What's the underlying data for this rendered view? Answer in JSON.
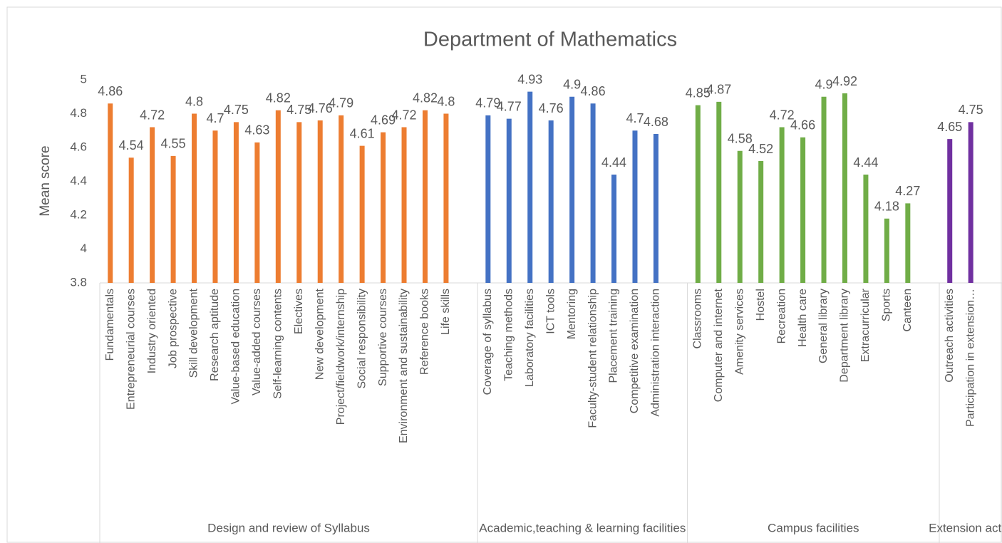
{
  "chart_data": {
    "type": "bar",
    "title": "Department of Mathematics",
    "y_label": "Mean score",
    "ylim": [
      3.8,
      5
    ],
    "yticks": [
      3.8,
      4,
      4.2,
      4.4,
      4.6,
      4.8,
      5
    ],
    "grid": false,
    "groups": [
      {
        "label": "Design and review of Syllabus",
        "color": "#ed7d31",
        "categories": [
          "Fundamentals",
          "Entrepreneurial courses",
          "Industry oriented",
          "Job prospective",
          "Skill development",
          "Research aptitude",
          "Value-based education",
          "Value-added courses",
          "Self-learning contents",
          "Electives",
          "New development",
          "Project/fieldwork/internship",
          "Social responsibility",
          "Supportive courses",
          "Environment and sustainability",
          "Reference books",
          "Life skills"
        ],
        "values": [
          4.86,
          4.54,
          4.72,
          4.55,
          4.8,
          4.7,
          4.75,
          4.63,
          4.82,
          4.75,
          4.76,
          4.79,
          4.61,
          4.69,
          4.72,
          4.82,
          4.8
        ]
      },
      {
        "label": "Academic,teaching & learning facilities",
        "color": "#4472c4",
        "categories": [
          "Coverage of syllabus",
          "Teaching methods",
          "Laboratory facilities",
          "ICT tools",
          "Mentoring",
          "Faculty-student relationship",
          "Placement training",
          "Competitive examination",
          "Administration interaction"
        ],
        "values": [
          4.79,
          4.77,
          4.93,
          4.76,
          4.9,
          4.86,
          4.44,
          4.7,
          4.68
        ]
      },
      {
        "label": "Campus facilities",
        "color": "#70ad47",
        "categories": [
          "Classrooms",
          "Computer and internet",
          "Amenity services",
          "Hostel",
          "Recreation",
          "Health care",
          "General library",
          "Department library",
          "Extracurricular",
          "Sports",
          "Canteen"
        ],
        "values": [
          4.85,
          4.87,
          4.58,
          4.52,
          4.72,
          4.66,
          4.9,
          4.92,
          4.44,
          4.18,
          4.27
        ]
      },
      {
        "label": "Extension activi",
        "color": "#7030a0",
        "categories": [
          "Outreach activities",
          "Participation in extension…"
        ],
        "values": [
          4.65,
          4.75
        ]
      }
    ]
  }
}
